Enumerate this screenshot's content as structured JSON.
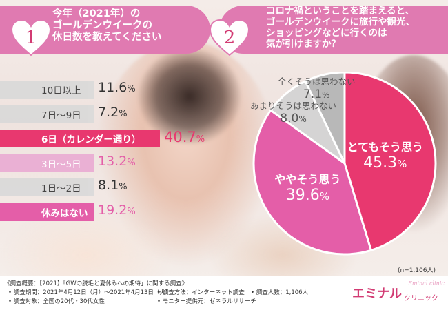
{
  "question1": {
    "number": "1",
    "lines": [
      "今年（2021年）の",
      "ゴールデンウイークの",
      "休日数を教えてください"
    ]
  },
  "question2": {
    "number": "2",
    "lines": [
      "コロナ禍ということを踏まえると、",
      "ゴールデンウイークに旅行や観光、",
      "ショッピングなどに行くのは",
      "気が引けますか？"
    ]
  },
  "chart_data": [
    {
      "type": "bar",
      "categories": [
        "10日以上",
        "7日～9日",
        "6日（カレンダー通り）",
        "3日～5日",
        "1日～2日",
        "休みはない"
      ],
      "values": [
        11.6,
        7.2,
        40.7,
        13.2,
        8.1,
        19.2
      ],
      "unit": "%"
    },
    {
      "type": "pie",
      "categories": [
        "とてもそう思う",
        "ややそう思う",
        "あまりそうは思わない",
        "全くそうは思わない"
      ],
      "values": [
        45.3,
        39.6,
        8.0,
        7.1
      ],
      "unit": "%",
      "colors": [
        "#e8386f",
        "#e45ea8",
        "#d5d4d4",
        "#b8b8b8"
      ]
    }
  ],
  "sample_note": "(n=1,106人)",
  "footer": {
    "overview": "《調査概要：【2021】「GWの脱毛と夏休みへの期待」に関する調査》",
    "period": "• 調査期間：2021年4月12日（月）～2021年4月13日（火）",
    "method": "• 調査方法：インターネット調査",
    "count": "• 調査人数：1,106人",
    "target": "• 調査対象：全国の20代・30代女性",
    "provider": "• モニター提供元：ゼネラルリサーチ"
  },
  "brand": {
    "name": "エミナル",
    "sub": "クリニック",
    "script": "Eminal clinic"
  },
  "colors": {
    "header": "#e07ab1",
    "accent_red": "#e8386f",
    "accent_pink": "#e45ea8",
    "bar_gray": "#d9d9d9",
    "bar_light_pink": "#eab0d4"
  }
}
